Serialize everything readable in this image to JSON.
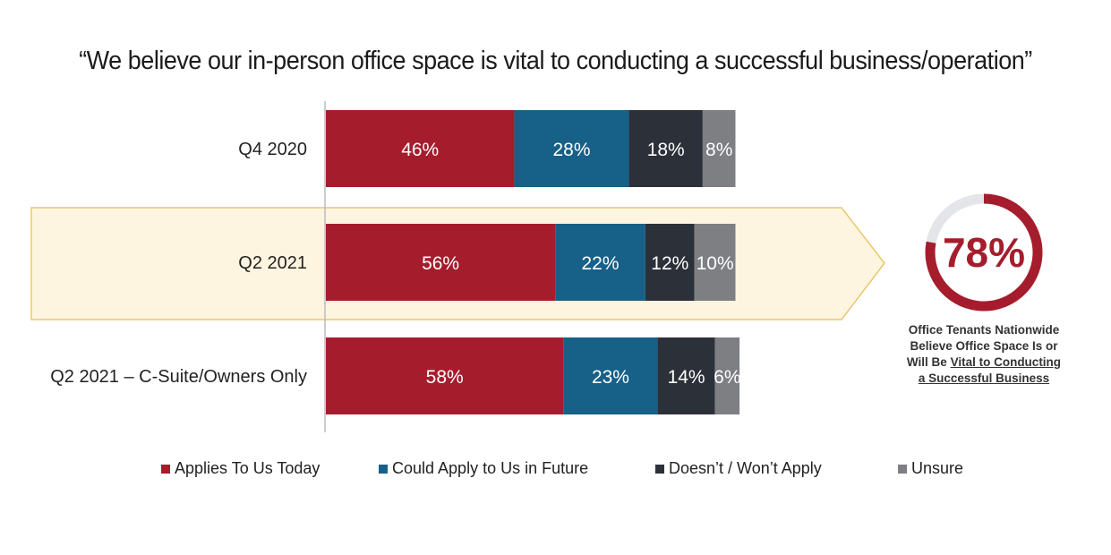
{
  "title": "“We believe our in-person office space is vital to conducting a successful business/operation”",
  "colors": {
    "applies_today": "#a51d2d",
    "could_apply_future": "#176087",
    "does_not_apply": "#2c3039",
    "unsure": "#7d7f83",
    "highlight_fill": "#fdf5e0",
    "highlight_border": "#e8c86a"
  },
  "chart_data": {
    "type": "bar",
    "orientation": "horizontal",
    "stacked": true,
    "categories": [
      "Q4 2020",
      "Q2 2021",
      "Q2 2021 – C-Suite/Owners Only"
    ],
    "series": [
      {
        "name": "Applies To Us Today",
        "values": [
          46,
          56,
          58
        ],
        "labels": [
          "46%",
          "56%",
          "58%"
        ]
      },
      {
        "name": "Could Apply to Us in Future",
        "values": [
          28,
          22,
          23
        ],
        "labels": [
          "28%",
          "22%",
          "23%"
        ]
      },
      {
        "name": "Doesn’t / Won’t Apply",
        "values": [
          18,
          12,
          14
        ],
        "labels": [
          "18%",
          "12%",
          "14%"
        ]
      },
      {
        "name": "Unsure",
        "values": [
          8,
          10,
          6
        ],
        "labels": [
          "8%",
          "10%",
          "6%"
        ]
      }
    ],
    "highlighted_category": "Q2 2021",
    "legend_position": "bottom",
    "grid": false
  },
  "callout": {
    "value": 78,
    "value_label": "78%",
    "text_lines": [
      "Office Tenants Nationwide",
      "Believe Office Space Is or",
      "Will Be "
    ],
    "text_underlined_1": "Vital to Conducting",
    "text_underlined_2": "a Successful Business"
  }
}
